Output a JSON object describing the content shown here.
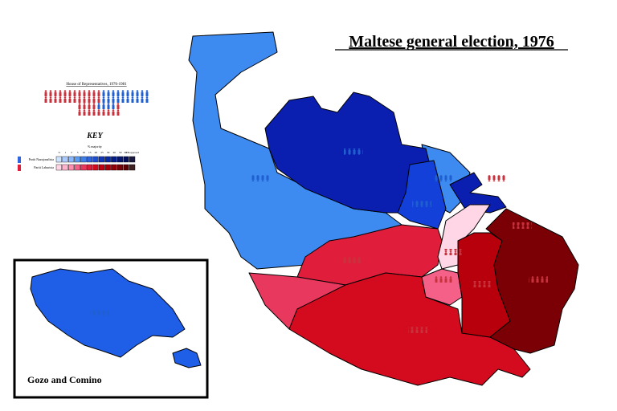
{
  "title": "Maltese general election, 1976",
  "legislature": {
    "title": "House of Representatives, 1976-1981"
  },
  "key": {
    "title": "KEY",
    "subtitle": "% majority",
    "scale": [
      "<1",
      "1",
      "2",
      "5",
      "10",
      "15",
      "20",
      "25",
      "30",
      "40",
      "50",
      "60+",
      "Unopposed"
    ],
    "parties": [
      {
        "name": "Partit Nazzjonalista",
        "colors": [
          "#cfe3ff",
          "#a9c9ff",
          "#8ab8ff",
          "#5b9cf5",
          "#3f7fe8",
          "#2f66e0",
          "#1f4fd0",
          "#1238b8",
          "#0a2aa0",
          "#061f88",
          "#041670",
          "#020d55",
          "#1a1a40"
        ]
      },
      {
        "name": "Partit Laburista",
        "colors": [
          "#ffd6e6",
          "#ffb3cc",
          "#ff8fb0",
          "#f56088",
          "#e8385e",
          "#e01e3c",
          "#d40b1e",
          "#c00010",
          "#a8000a",
          "#900008",
          "#780006",
          "#5a0004",
          "#402020"
        ]
      }
    ]
  },
  "inset": {
    "label": "Gozo and Comino"
  }
}
